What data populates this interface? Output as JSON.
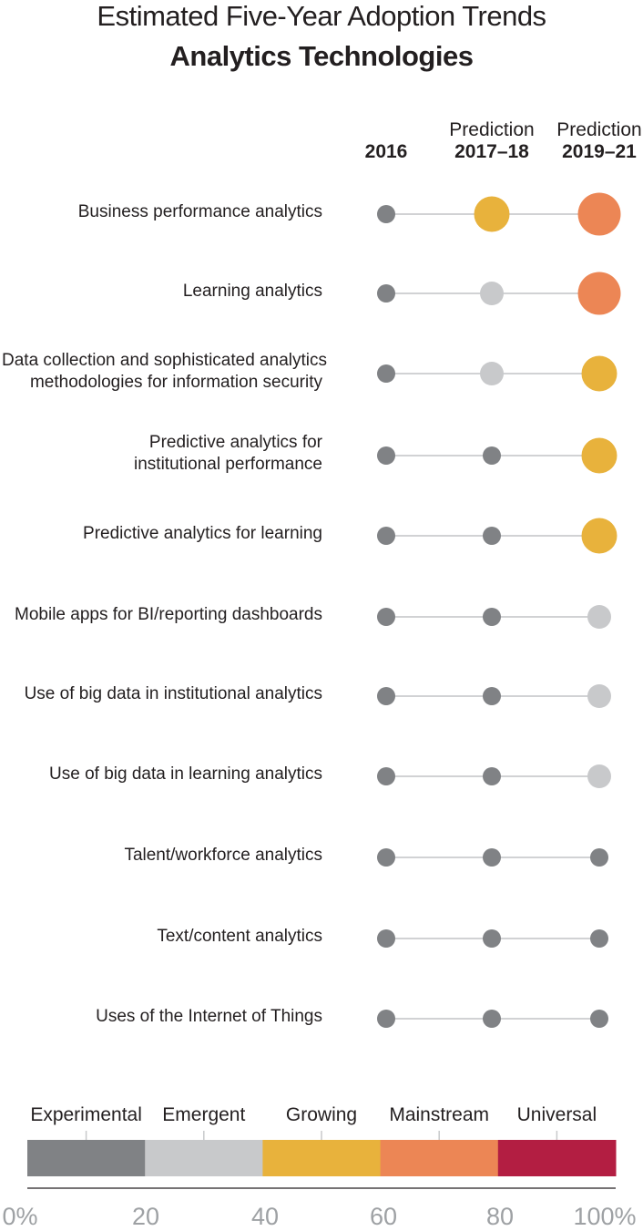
{
  "chart_data": {
    "type": "dot-plot",
    "title": "Estimated Five-Year Adoption Trends",
    "subtitle": "Analytics Technologies",
    "columns": [
      {
        "sub": "",
        "main": "2016"
      },
      {
        "sub": "Prediction",
        "main": "2017–18"
      },
      {
        "sub": "Prediction",
        "main": "2019–21"
      }
    ],
    "rows": [
      {
        "label": [
          "Business performance analytics"
        ],
        "stages": [
          "Experimental",
          "Growing",
          "Mainstream"
        ]
      },
      {
        "label": [
          "Learning analytics"
        ],
        "stages": [
          "Experimental",
          "Emergent",
          "Mainstream"
        ]
      },
      {
        "label": [
          "Data collection and sophisticated analytics",
          "methodologies for information security"
        ],
        "stages": [
          "Experimental",
          "Emergent",
          "Growing"
        ]
      },
      {
        "label": [
          "Predictive analytics for",
          "institutional performance"
        ],
        "stages": [
          "Experimental",
          "Experimental",
          "Growing"
        ]
      },
      {
        "label": [
          "Predictive analytics for learning"
        ],
        "stages": [
          "Experimental",
          "Experimental",
          "Growing"
        ]
      },
      {
        "label": [
          "Mobile apps for BI/reporting dashboards"
        ],
        "stages": [
          "Experimental",
          "Experimental",
          "Emergent"
        ]
      },
      {
        "label": [
          "Use of big data in institutional analytics"
        ],
        "stages": [
          "Experimental",
          "Experimental",
          "Emergent"
        ]
      },
      {
        "label": [
          "Use of big data in learning analytics"
        ],
        "stages": [
          "Experimental",
          "Experimental",
          "Emergent"
        ]
      },
      {
        "label": [
          "Talent/workforce analytics"
        ],
        "stages": [
          "Experimental",
          "Experimental",
          "Experimental"
        ]
      },
      {
        "label": [
          "Text/content analytics"
        ],
        "stages": [
          "Experimental",
          "Experimental",
          "Experimental"
        ]
      },
      {
        "label": [
          "Uses of the Internet of Things"
        ],
        "stages": [
          "Experimental",
          "Experimental",
          "Experimental"
        ]
      }
    ],
    "legend": [
      {
        "name": "Experimental",
        "range": [
          0,
          20
        ],
        "color": "#808285"
      },
      {
        "name": "Emergent",
        "range": [
          20,
          40
        ],
        "color": "#c8c9cb"
      },
      {
        "name": "Growing",
        "range": [
          40,
          60
        ],
        "color": "#e8b23c"
      },
      {
        "name": "Mainstream",
        "range": [
          60,
          80
        ],
        "color": "#ec8655"
      },
      {
        "name": "Universal",
        "range": [
          80,
          100
        ],
        "color": "#b31e42"
      }
    ],
    "axis_ticks": [
      "0%",
      "20",
      "40",
      "60",
      "80",
      "100%"
    ],
    "line_color": "#d1d2d4"
  }
}
